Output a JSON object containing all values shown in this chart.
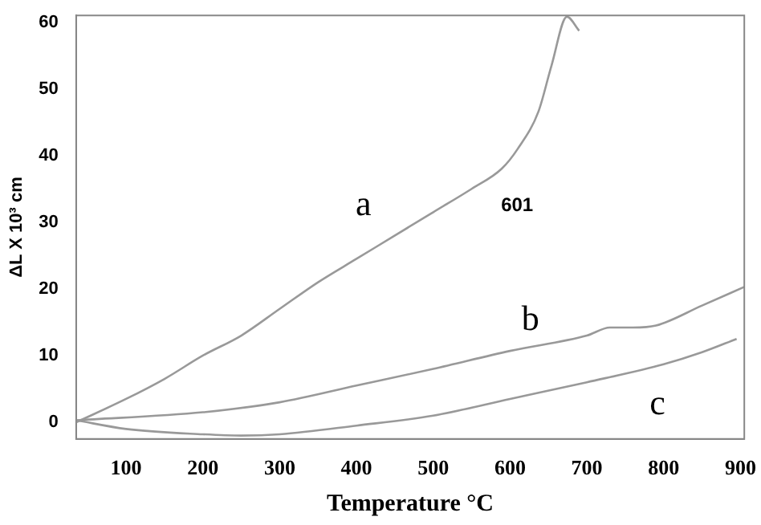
{
  "chart_data": {
    "type": "line",
    "xlabel": "Temperature °C",
    "ylabel": "ΔL X 10³ cm",
    "xlim": [
      35,
      905
    ],
    "ylim": [
      -2.5,
      61
    ],
    "xticks": [
      100,
      200,
      300,
      400,
      500,
      600,
      700,
      800,
      900
    ],
    "yticks": [
      0,
      10,
      20,
      30,
      40,
      50,
      60
    ],
    "grid": false,
    "legend": false,
    "marker": "none",
    "line_style": "solid",
    "series": [
      {
        "name": "a",
        "color": "#999999",
        "x": [
          35,
          100,
          150,
          200,
          250,
          300,
          350,
          400,
          450,
          500,
          550,
          589,
          610,
          637,
          654,
          674,
          690
        ],
        "values": [
          0,
          3.5,
          6.5,
          10,
          13,
          17,
          21,
          24.5,
          28,
          31.5,
          35,
          38,
          41,
          46.6,
          53.5,
          60.8,
          58.7
        ]
      },
      {
        "name": "b",
        "color": "#999999",
        "x": [
          35,
          200,
          300,
          400,
          500,
          600,
          700,
          730,
          760,
          790,
          850,
          905
        ],
        "values": [
          0.3,
          1.5,
          3,
          5.5,
          8,
          10.7,
          13,
          14.2,
          14.2,
          14.5,
          17.5,
          20.3
        ]
      },
      {
        "name": "c",
        "color": "#999999",
        "x": [
          35,
          100,
          200,
          250,
          300,
          400,
          500,
          600,
          700,
          800,
          850,
          895
        ],
        "values": [
          0.3,
          -1,
          -1.8,
          -2,
          -1.8,
          -0.5,
          1,
          3.5,
          6,
          8.7,
          10.5,
          12.5
        ]
      }
    ],
    "annotations": [
      "601"
    ]
  }
}
